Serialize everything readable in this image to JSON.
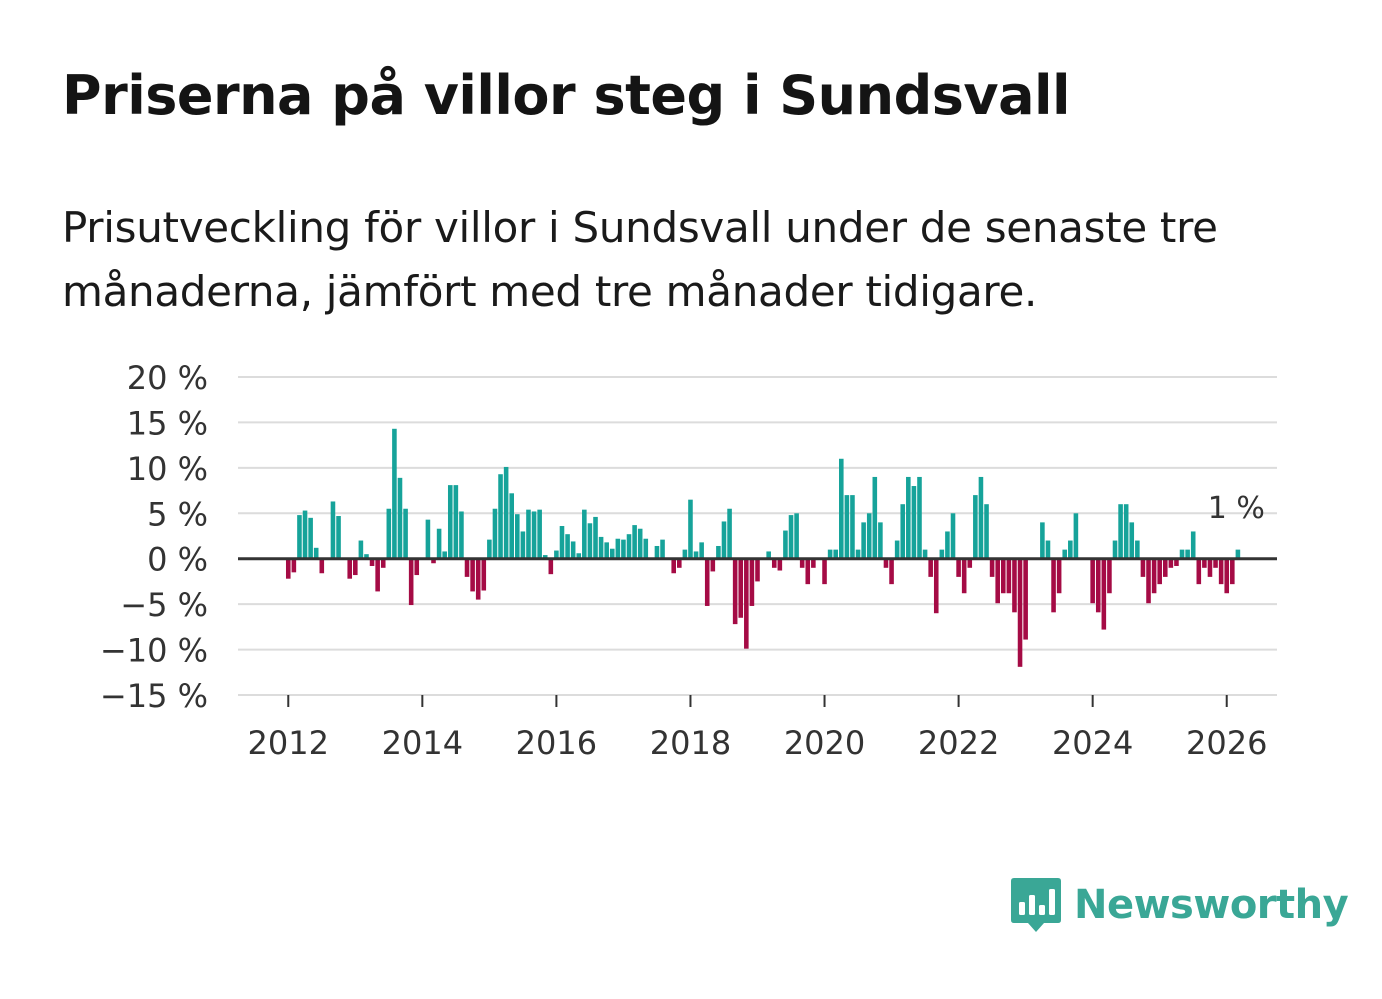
{
  "header": {
    "title": "Priserna på villor steg i Sundsvall",
    "subtitle": "Prisutveckling för villor i Sundsvall under de senaste tre månaderna, jämfört med tre månader tidigare."
  },
  "colors": {
    "positive": "#16a39a",
    "negative": "#a50b45",
    "grid": "#dcdcdc",
    "zero_line": "#333333",
    "brand": "#3aa796"
  },
  "brand": {
    "name": "Newsworthy"
  },
  "chart_data": {
    "type": "bar",
    "title": "Priserna på villor steg i Sundsvall",
    "xlabel": "",
    "ylabel": "",
    "start": "2012-01",
    "ylim": [
      -15,
      20
    ],
    "xlim": [
      2011.25,
      2026.75
    ],
    "y_ticks": [
      20,
      15,
      10,
      5,
      0,
      -5,
      -10,
      -15
    ],
    "y_tick_labels": [
      "20 %",
      "15 %",
      "10 %",
      "5 %",
      "0 %",
      "−5 %",
      "−10 %",
      "−15 %"
    ],
    "x_ticks": [
      2012,
      2014,
      2016,
      2018,
      2020,
      2022,
      2024,
      2026
    ],
    "x_tick_labels": [
      "2012",
      "2014",
      "2016",
      "2018",
      "2020",
      "2022",
      "2024",
      "2026"
    ],
    "annotation": "1 %",
    "grid": true,
    "values": [
      -2.2,
      -1.5,
      4.8,
      5.3,
      4.5,
      1.2,
      -1.6,
      0,
      6.3,
      4.7,
      0,
      -2.2,
      -1.8,
      2.0,
      0.5,
      -0.8,
      -3.6,
      -1.0,
      5.5,
      14.3,
      8.9,
      5.5,
      -5.1,
      -1.8,
      0,
      4.3,
      -0.5,
      3.3,
      0.8,
      8.1,
      8.1,
      5.2,
      -2.0,
      -3.6,
      -4.5,
      -3.5,
      2.1,
      5.5,
      9.3,
      10.1,
      7.2,
      4.9,
      3.0,
      5.4,
      5.2,
      5.4,
      0.4,
      -1.7,
      0.9,
      3.6,
      2.7,
      1.9,
      0.6,
      5.4,
      3.9,
      4.6,
      2.4,
      1.8,
      1.1,
      2.2,
      2.1,
      2.7,
      3.7,
      3.3,
      2.2,
      0,
      1.4,
      2.1,
      0,
      -1.6,
      -1.0,
      1.0,
      6.5,
      0.8,
      1.8,
      -5.2,
      -1.4,
      1.4,
      4.1,
      5.5,
      -7.2,
      -6.5,
      -9.9,
      -5.2,
      -2.5,
      0,
      0.8,
      -1.0,
      -1.3,
      3.1,
      4.8,
      5.0,
      -1.0,
      -2.8,
      -1.0,
      0,
      -2.8,
      1.0,
      1.0,
      11.0,
      7.0,
      7.0,
      1.0,
      4.0,
      5.0,
      9.0,
      4.0,
      -1.0,
      -2.8,
      2.0,
      6.0,
      9.0,
      8.0,
      9.0,
      1.0,
      -2.0,
      -6.0,
      1.0,
      3.0,
      5.0,
      -2.0,
      -3.8,
      -1.0,
      7.0,
      9.0,
      6.0,
      -2.0,
      -4.9,
      -3.8,
      -3.8,
      -5.9,
      -11.9,
      -8.9,
      0,
      0,
      4.0,
      2.0,
      -5.9,
      -3.8,
      1.0,
      2.0,
      5.0,
      0,
      0,
      -4.9,
      -5.9,
      -7.8,
      -3.8,
      2.0,
      6.0,
      6.0,
      4.0,
      2.0,
      -2.0,
      -4.9,
      -3.8,
      -2.8,
      -2.0,
      -1.0,
      -0.8,
      1.0,
      1.0,
      3.0,
      -2.8,
      -1.0,
      -2.0,
      -1.0,
      -2.8,
      -3.8,
      -2.8,
      1.0
    ]
  }
}
